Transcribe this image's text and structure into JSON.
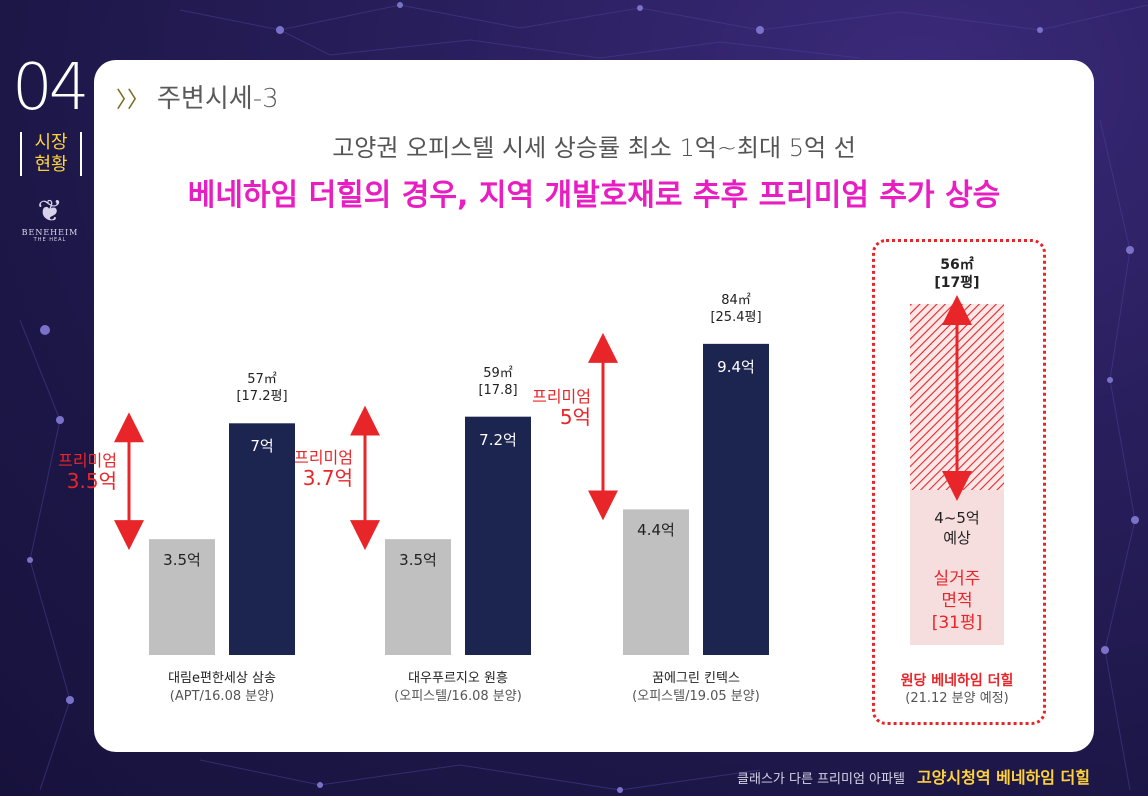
{
  "section": {
    "number": "04",
    "label_line1": "시장",
    "label_line2": "현황"
  },
  "logo": {
    "name": "BENEHEIM",
    "sub": "THE HEAL"
  },
  "heading": {
    "arrows": "〉〉",
    "text": "주변시세-3"
  },
  "subtitle": "고양권 오피스텔 시세 상승률 최소 1억~최대 5억 선",
  "title": "베네하임 더힐의 경우, 지역 개발호재로 추후 프리미엄 추가 상승",
  "colors": {
    "before": "#c0c0c0",
    "after": "#1c2450",
    "premium": "#e8262a",
    "accent": "#e81ec2",
    "highlight_fill": "#f6dede"
  },
  "chart_data": {
    "type": "bar",
    "unit": "억",
    "ylim": [
      0,
      10
    ],
    "groups": [
      {
        "name": "대림e편한세상 삼송",
        "sub": "(APT/16.08 분양)",
        "size_line1": "57㎡",
        "size_line2": "[17.2평]",
        "before": 3.5,
        "before_label": "3.5억",
        "after": 7,
        "after_label": "7억",
        "premium_line1": "프리미엄",
        "premium_line2": "3.5억"
      },
      {
        "name": "대우푸르지오 원흥",
        "sub": "(오피스텔/16.08 분양)",
        "size_line1": "59㎡",
        "size_line2": "[17.8]",
        "before": 3.5,
        "before_label": "3.5억",
        "after": 7.2,
        "after_label": "7.2억",
        "premium_line1": "프리미엄",
        "premium_line2": "3.7억"
      },
      {
        "name": "꿈에그린 킨텍스",
        "sub": "(오피스텔/19.05 분양)",
        "size_line1": "84㎡",
        "size_line2": "[25.4평]",
        "before": 4.4,
        "before_label": "4.4억",
        "after": 9.4,
        "after_label": "9.4억",
        "premium_line1": "프리미엄",
        "premium_line2": "5억"
      }
    ],
    "highlight": {
      "name": "원당 베네하임 더힐",
      "sub": "(21.12 분양 예정)",
      "size_line1": "56㎡",
      "size_line2": "[17평]",
      "estimate_line1": "4~5억",
      "estimate_line2": "예상",
      "note_line1": "실거주",
      "note_line2": "면적",
      "note_line3": "[31평]"
    }
  },
  "footer": {
    "tagline": "클래스가 다른 프리미엄 아파텔",
    "brand": "고양시청역 베네하임 더힐"
  }
}
